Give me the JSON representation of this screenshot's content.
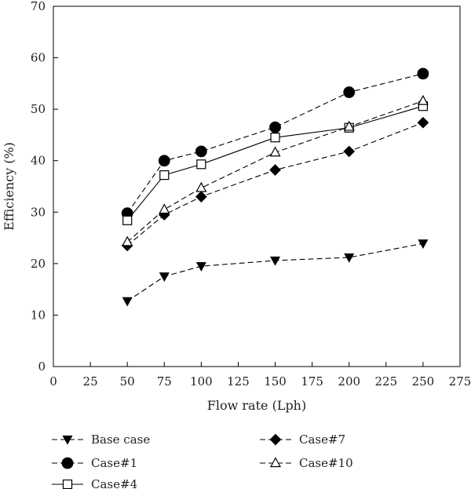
{
  "chart_data": {
    "type": "line",
    "xlabel": "Flow rate (Lph)",
    "ylabel": "Efficiency (%)",
    "xlim": [
      0,
      275
    ],
    "ylim": [
      0,
      70
    ],
    "xticks": [
      0,
      25,
      50,
      75,
      100,
      125,
      150,
      175,
      200,
      225,
      250,
      275
    ],
    "yticks": [
      0,
      10,
      20,
      30,
      40,
      50,
      60,
      70
    ],
    "grid": false,
    "legend_position": "bottom",
    "x": [
      50,
      75,
      100,
      150,
      200,
      250
    ],
    "series": [
      {
        "name": "Base case",
        "values": [
          12.7,
          17.5,
          19.5,
          20.6,
          21.2,
          23.9
        ],
        "marker": "triangle-down-filled",
        "line": "dashed",
        "color": "#000000"
      },
      {
        "name": "Case#1",
        "values": [
          29.8,
          40.0,
          41.8,
          46.5,
          53.3,
          56.9
        ],
        "marker": "circle-filled",
        "line": "dashed",
        "color": "#000000"
      },
      {
        "name": "Case#4",
        "values": [
          28.4,
          37.2,
          39.3,
          44.5,
          46.4,
          50.6
        ],
        "marker": "square-open",
        "line": "solid",
        "color": "#000000"
      },
      {
        "name": "Case#7",
        "values": [
          23.5,
          29.5,
          33.0,
          38.2,
          41.8,
          47.4
        ],
        "marker": "diamond-filled",
        "line": "dashed",
        "color": "#000000"
      },
      {
        "name": "Case#10",
        "values": [
          24.2,
          30.5,
          34.7,
          41.6,
          46.6,
          51.6
        ],
        "marker": "triangle-up-open",
        "line": "dashed",
        "color": "#000000"
      }
    ],
    "legend_order": [
      0,
      3,
      1,
      4,
      2
    ]
  }
}
